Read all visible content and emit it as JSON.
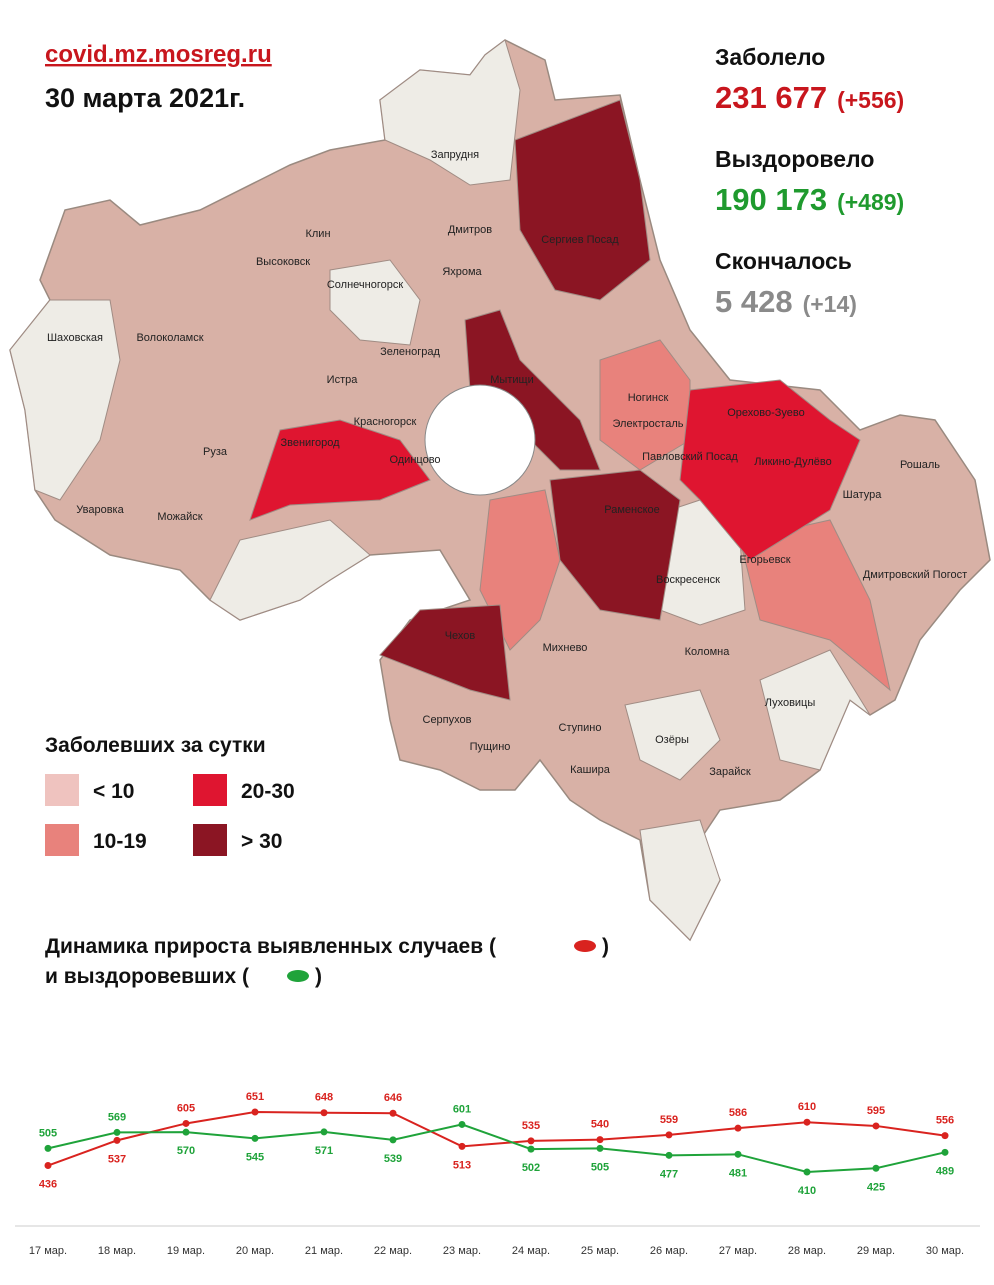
{
  "header": {
    "site": "covid.mz.mosreg.ru",
    "date": "30 марта 2021г."
  },
  "stats": [
    {
      "label": "Заболело",
      "value": "231 677",
      "delta": "(+556)",
      "color": "#c8161d"
    },
    {
      "label": "Выздоровело",
      "value": "190 173",
      "delta": "(+489)",
      "color": "#1f9a2e"
    },
    {
      "label": "Скончалось",
      "value": "5 428",
      "delta": "(+14)",
      "color": "#8a8a8a"
    }
  ],
  "legend": {
    "title": "Заболевших за сутки",
    "items": [
      {
        "label": "< 10",
        "color": "#efc3bf"
      },
      {
        "label": "10-19",
        "color": "#e8827c"
      },
      {
        "label": "20-30",
        "color": "#df1530"
      },
      {
        "label": "> 30",
        "color": "#8b1523"
      }
    ]
  },
  "map": {
    "labels": [
      "Запрудня",
      "Клин",
      "Дмитров",
      "Сергиев Посад",
      "Высоковск",
      "Яхрома",
      "Солнечногорск",
      "Шаховская",
      "Волоколамск",
      "Зеленоград",
      "Истра",
      "Мытищи",
      "Ногинск",
      "Орехово-Зуево",
      "Красногорск",
      "Электросталь",
      "Звенигород",
      "Павловский Посад",
      "Одинцово",
      "Ликино-Дулёво",
      "Руза",
      "Рошаль",
      "Шатура",
      "Раменское",
      "Уваровка",
      "Можайск",
      "Егорьевск",
      "Дмитровский Погост",
      "Воскресенск",
      "Чехов",
      "Михнево",
      "Коломна",
      "Луховицы",
      "Серпухов",
      "Пущино",
      "Ступино",
      "Озёры",
      "Кашира",
      "Зарайск"
    ]
  },
  "chart_data": {
    "type": "line",
    "title_parts": [
      "Динамика прироста выявленных случаев (",
      ")",
      "и выздоровевших (",
      ")"
    ],
    "categories": [
      "17 мар.",
      "18 мар.",
      "19 мар.",
      "20 мар.",
      "21 мар.",
      "22 мар.",
      "23 мар.",
      "24 мар.",
      "25 мар.",
      "26 мар.",
      "27 мар.",
      "28 мар.",
      "29 мар.",
      "30 мар."
    ],
    "series": [
      {
        "color": "#d9231f",
        "values": [
          436,
          537,
          605,
          651,
          648,
          646,
          513,
          535,
          540,
          559,
          586,
          610,
          595,
          556
        ]
      },
      {
        "color": "#1fa33a",
        "values": [
          505,
          569,
          570,
          545,
          571,
          539,
          601,
          502,
          505,
          477,
          481,
          410,
          425,
          489
        ]
      }
    ]
  }
}
